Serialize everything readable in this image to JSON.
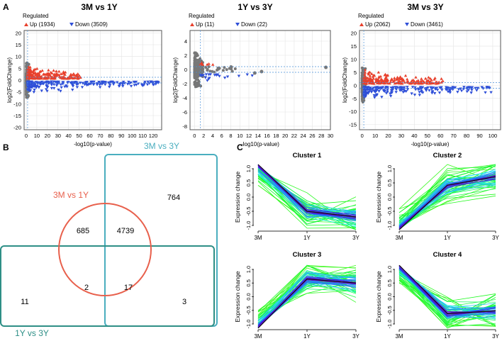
{
  "panel_labels": {
    "a": "A",
    "b": "B",
    "c": "C"
  },
  "colors": {
    "up": "#e8402c",
    "down": "#2f4fd8",
    "ns": "#777777",
    "venn_3m1y": "#e8604c",
    "venn_3m3y": "#4aaebf",
    "venn_1y3y": "#2e8f86"
  },
  "chart_data": [
    {
      "type": "scatter",
      "title": "3M vs 1Y",
      "legend_title": "Regulated",
      "up_label": "Up (1934)",
      "down_label": "Down (3509)",
      "xlabel": "-log10(p-value)",
      "ylabel": "log2(FoldChange)",
      "xlim": [
        -2,
        128
      ],
      "ylim": [
        -21,
        21
      ],
      "xticks": [
        0,
        10,
        20,
        30,
        40,
        50,
        60,
        70,
        80,
        90,
        100,
        110,
        120
      ],
      "yticks": [
        20,
        15,
        10,
        5,
        0,
        -5,
        -10,
        -15,
        -20
      ],
      "xmax_up": 50,
      "xmax_down": 125
    },
    {
      "type": "scatter",
      "title": "1Y vs 3Y",
      "legend_title": "Regulated",
      "up_label": "Up (11)",
      "down_label": "Down (22)",
      "xlabel": "-log10(p-value)",
      "ylabel": "log2(FoldChange)",
      "xlim": [
        -1,
        30
      ],
      "ylim": [
        -8.5,
        5.5
      ],
      "xticks": [
        0,
        2,
        4,
        6,
        8,
        10,
        12,
        14,
        16,
        18,
        20,
        22,
        24,
        26,
        28,
        30
      ],
      "yticks": [
        4,
        2,
        0,
        -2,
        -4,
        -6,
        -8
      ],
      "xmax_up": 4,
      "xmax_down": 13
    },
    {
      "type": "scatter",
      "title": "3M vs 3Y",
      "legend_title": "Regulated",
      "up_label": "Up (2062)",
      "down_label": "Down (3461)",
      "xlabel": "-log10(p-value)",
      "ylabel": "log2(FoldChange)",
      "xlim": [
        -2,
        106
      ],
      "ylim": [
        -17,
        21
      ],
      "xticks": [
        0,
        10,
        20,
        30,
        40,
        50,
        60,
        70,
        80,
        90,
        100
      ],
      "yticks": [
        20,
        15,
        10,
        5,
        0,
        -5,
        -10,
        -15
      ],
      "xmax_up": 62,
      "xmax_down": 104
    },
    {
      "type": "line",
      "title": "Cluster 1",
      "ylabel": "Expression change",
      "categories": [
        "3M",
        "1Y",
        "3Y"
      ],
      "yticks": [
        "1.0",
        "0.5",
        "0.0",
        "-0.5",
        "-1.0"
      ],
      "center": [
        1.15,
        -0.5,
        -0.7
      ]
    },
    {
      "type": "line",
      "title": "Cluster 2",
      "ylabel": "Expression change",
      "categories": [
        "3M",
        "1Y",
        "3Y"
      ],
      "yticks": [
        "1.0",
        "0.5",
        "0.0",
        "-0.5",
        "-1.0"
      ],
      "center": [
        -1.15,
        0.42,
        0.72
      ]
    },
    {
      "type": "line",
      "title": "Cluster 3",
      "ylabel": "Expression change",
      "categories": [
        "3M",
        "1Y",
        "3Y"
      ],
      "yticks": [
        "1.0",
        "0.5",
        "0.0",
        "-0.5",
        "-1.0"
      ],
      "center": [
        -1.15,
        0.65,
        0.5
      ]
    },
    {
      "type": "line",
      "title": "Cluster 4",
      "ylabel": "Expression change",
      "categories": [
        "3M",
        "1Y",
        "3Y"
      ],
      "yticks": [
        "1.0",
        "0.5",
        "0.0",
        "-0.5",
        "-1.0"
      ],
      "center": [
        1.15,
        -0.62,
        -0.52
      ]
    }
  ],
  "venn": {
    "sets": [
      "3M vs 1Y",
      "3M vs 3Y",
      "1Y vs 3Y"
    ],
    "regions": {
      "only_3m1y": "685",
      "3m1y_3m3y": "4739",
      "only_3m3y": "764",
      "all_three": "17",
      "3m1y_1y3y": "2",
      "only_1y3y": "11",
      "3m3y_1y3y": "3"
    }
  }
}
